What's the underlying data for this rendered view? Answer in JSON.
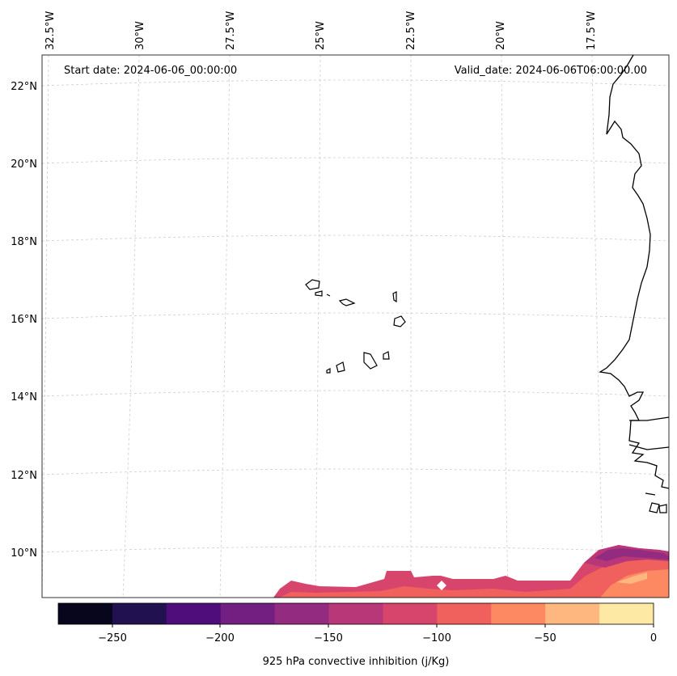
{
  "map": {
    "start_date_text": "Start date: 2024-06-06_00:00:00",
    "valid_date_text": "Valid_date: 2024-06-06T06:00:00.00",
    "lon_ticks": [
      "32.5°W",
      "30°W",
      "27.5°W",
      "25°W",
      "22.5°W",
      "20°W",
      "17.5°W"
    ],
    "lat_ticks": [
      "22°N",
      "20°N",
      "18°N",
      "16°N",
      "14°N",
      "12°N",
      "10°N"
    ],
    "gridlines": true,
    "coastline_color": "#000000",
    "gridline_color": "#cccccc"
  },
  "colorbar": {
    "label": "925 hPa convective inhibition (j/Kg)",
    "tick_labels": [
      "−250",
      "−200",
      "−150",
      "−100",
      "−50",
      "0"
    ],
    "levels": [
      -275,
      -250,
      -225,
      -200,
      -175,
      -150,
      -125,
      -100,
      -75,
      -50,
      -25,
      0
    ],
    "colors": [
      "#07061c",
      "#221150",
      "#4f0c7b",
      "#721f81",
      "#932b80",
      "#b73779",
      "#d8456c",
      "#f0605d",
      "#fc8961",
      "#feb77e",
      "#fde8a4"
    ]
  },
  "chart_data": {
    "type": "map-contour",
    "variable": "925 hPa convective inhibition",
    "units": "j/Kg",
    "start_date": "2024-06-06_00:00:00",
    "valid_date": "2024-06-06T06:00:00.00",
    "colorbar_range": [
      -275,
      0
    ],
    "colorbar_ticks": [
      -250,
      -200,
      -150,
      -100,
      -50,
      0
    ]
  }
}
